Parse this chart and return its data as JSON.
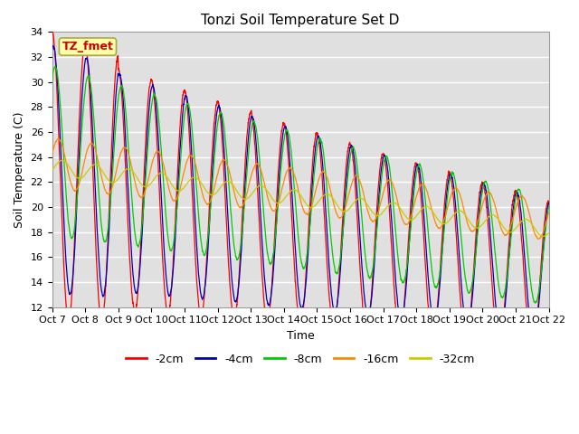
{
  "title": "Tonzi Soil Temperature Set D",
  "xlabel": "Time",
  "ylabel": "Soil Temperature (C)",
  "ylim": [
    12,
    34
  ],
  "xtick_labels": [
    "Oct 7",
    "Oct 8",
    "Oct 9",
    "Oct 10",
    "Oct 11",
    "Oct 12",
    "Oct 13",
    "Oct 14",
    "Oct 15",
    "Oct 16",
    "Oct 17",
    "Oct 18",
    "Oct 19",
    "Oct 20",
    "Oct 21",
    "Oct 22"
  ],
  "ytick_values": [
    12,
    14,
    16,
    18,
    20,
    22,
    24,
    26,
    28,
    30,
    32,
    34
  ],
  "legend_labels": [
    "-2cm",
    "-4cm",
    "-8cm",
    "-16cm",
    "-32cm"
  ],
  "line_colors": [
    "#ff0000",
    "#0000bb",
    "#00cc00",
    "#ff8800",
    "#cccc00"
  ],
  "label_box_text": "TZ_fmet",
  "label_box_facecolor": "#ffffaa",
  "label_box_edgecolor": "#aaaa44",
  "label_box_text_color": "#cc0000",
  "background_color": "#ffffff",
  "plot_bg_color": "#e0e0e0",
  "grid_color": "#ffffff",
  "title_fontsize": 11,
  "axis_label_fontsize": 9,
  "tick_fontsize": 8,
  "legend_fontsize": 9
}
